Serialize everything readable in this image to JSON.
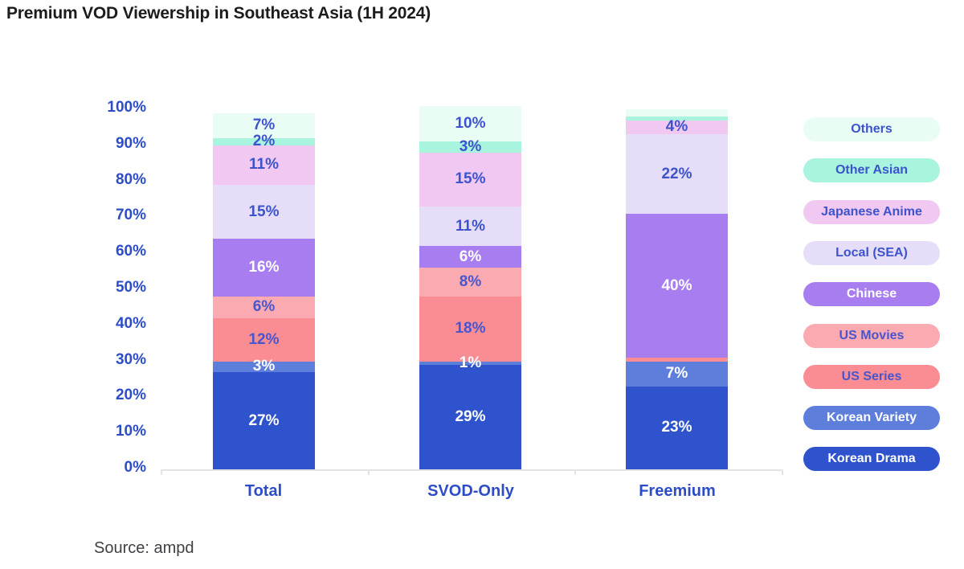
{
  "title": "Premium VOD Viewership in Southeast Asia (1H 2024)",
  "source": "Source: ampd",
  "text_blue": "#2d4cc8",
  "chart_data": {
    "type": "bar",
    "stacked": true,
    "title": "Premium VOD Viewership in Southeast Asia (1H 2024)",
    "categories": [
      "Total",
      "SVOD-Only",
      "Freemium"
    ],
    "y_ticks": [
      "0%",
      "10%",
      "20%",
      "30%",
      "40%",
      "50%",
      "60%",
      "70%",
      "80%",
      "90%",
      "100%"
    ],
    "ylim": [
      0,
      100
    ],
    "unit": "percent",
    "grid": false,
    "legend_position": "right",
    "series_bottom_to_top": [
      {
        "name": "Korean Drama",
        "color": "#2e53cd",
        "label_color": "#ffffff",
        "values": [
          27,
          29,
          23
        ],
        "labels": [
          "27%",
          "29%",
          "23%"
        ]
      },
      {
        "name": "Korean Variety",
        "color": "#5e7edb",
        "label_color": "#ffffff",
        "values": [
          3,
          1,
          7
        ],
        "labels": [
          "3%",
          "1%",
          "7%"
        ]
      },
      {
        "name": "US Series",
        "color": "#f98d93",
        "label_color": "#4856cd",
        "values": [
          12,
          18,
          1
        ],
        "labels": [
          "12%",
          "18%",
          ""
        ]
      },
      {
        "name": "US Movies",
        "color": "#fbaab2",
        "label_color": "#4856cd",
        "values": [
          6,
          8,
          0
        ],
        "labels": [
          "6%",
          "8%",
          ""
        ]
      },
      {
        "name": "Chinese",
        "color": "#a77df0",
        "label_color": "#ffffff",
        "values": [
          16,
          6,
          40
        ],
        "labels": [
          "16%",
          "6%",
          "40%"
        ]
      },
      {
        "name": "Local (SEA)",
        "color": "#e6def8",
        "label_color": "#3d53cb",
        "values": [
          15,
          11,
          22
        ],
        "labels": [
          "15%",
          "11%",
          "22%"
        ]
      },
      {
        "name": "Japanese Anime",
        "color": "#f0c8f2",
        "label_color": "#3d53cb",
        "values": [
          11,
          15,
          4
        ],
        "labels": [
          "11%",
          "15%",
          "4%"
        ]
      },
      {
        "name": "Other Asian",
        "color": "#a8f4df",
        "label_color": "#3d53cb",
        "values": [
          2,
          3,
          1
        ],
        "labels": [
          "2%",
          "3%",
          ""
        ]
      },
      {
        "name": "Others",
        "color": "#e9fdf5",
        "label_color": "#3d53cb",
        "values": [
          7,
          10,
          2
        ],
        "labels": [
          "7%",
          "10%",
          ""
        ]
      }
    ],
    "legend_top_to_bottom": [
      "Others",
      "Other Asian",
      "Japanese Anime",
      "Local (SEA)",
      "Chinese",
      "US Movies",
      "US Series",
      "Korean Variety",
      "Korean Drama"
    ]
  }
}
